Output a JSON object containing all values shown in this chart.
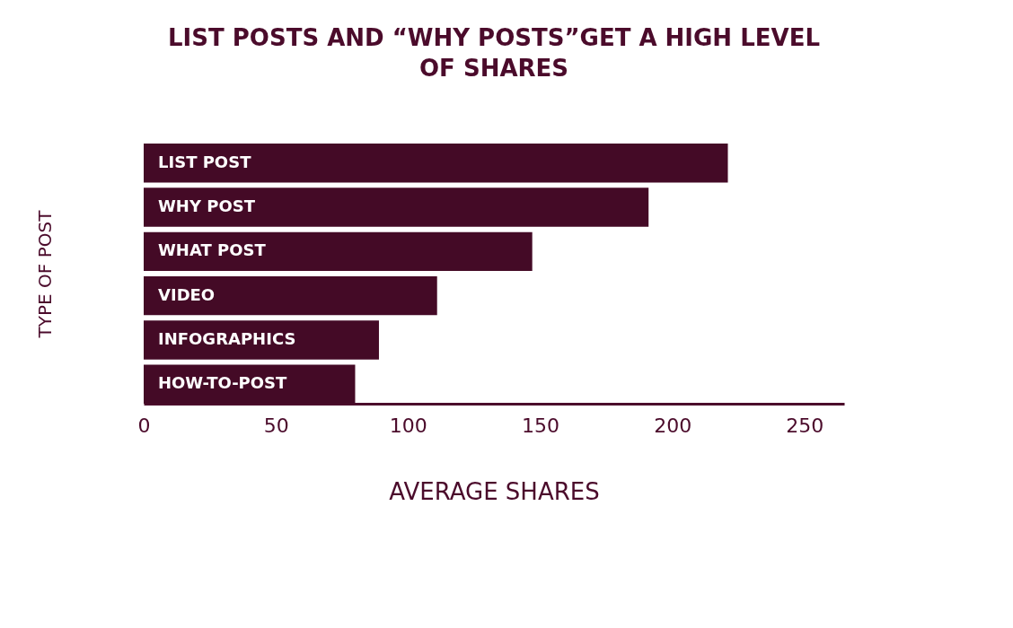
{
  "chart_data": {
    "type": "bar",
    "orientation": "horizontal",
    "title": "LIST POSTS AND “WHY POSTS”GET A HIGH LEVEL OF SHARES",
    "xlabel": "AVERAGE SHARES",
    "ylabel": "TYPE OF POST",
    "categories": [
      "LIST POST",
      "WHY POST",
      "WHAT POST",
      "VIDEO",
      "INFOGRAPHICS",
      "HOW-TO-POST"
    ],
    "series": [
      {
        "color": "#440a26",
        "values": [
          221,
          191,
          147,
          111,
          89,
          80
        ]
      }
    ],
    "xlim": [
      0,
      265
    ],
    "xticks": [
      0,
      50,
      100,
      150,
      200,
      250
    ],
    "grid": false
  }
}
